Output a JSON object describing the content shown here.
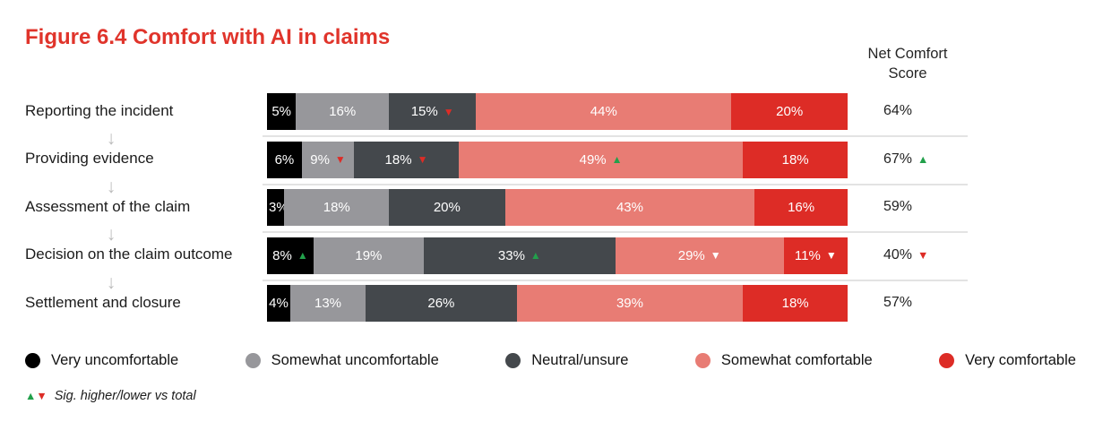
{
  "title": "Figure 6.4 Comfort with AI in claims",
  "net_score_header": {
    "line1": "Net Comfort",
    "line2": "Score"
  },
  "colors": {
    "title": "#e0342b",
    "very_uncomfortable": "#000000",
    "somewhat_uncomfortable": "#97979b",
    "neutral_unsure": "#44484c",
    "somewhat_comfortable": "#e87c74",
    "very_comfortable": "#dd2c26",
    "sig_up_green": "#22a04b",
    "sig_down_red": "#dd2c26",
    "marker_white": "#ffffff",
    "divider": "#e3e3e3",
    "flow_arrow": "#bcbcbc"
  },
  "legend": {
    "items": [
      {
        "label": "Very uncomfortable",
        "color_key": "very_uncomfortable"
      },
      {
        "label": "Somewhat uncomfortable",
        "color_key": "somewhat_uncomfortable"
      },
      {
        "label": "Neutral/unsure",
        "color_key": "neutral_unsure"
      },
      {
        "label": "Somewhat comfortable",
        "color_key": "somewhat_comfortable"
      },
      {
        "label": "Very comfortable",
        "color_key": "very_comfortable"
      }
    ]
  },
  "footnote": {
    "up": "▲",
    "down": "▼",
    "text": "Sig. higher/lower vs total"
  },
  "chart_data": {
    "type": "bar",
    "subtype": "horizontal-stacked-100",
    "unit": "%",
    "title": "Figure 6.4 Comfort with AI in claims",
    "net_column_label": "Net Comfort Score",
    "sig_note": "Sig. higher/lower vs total",
    "categories": [
      "Reporting the incident",
      "Providing evidence",
      "Assessment of the claim",
      "Decision on the claim outcome",
      "Settlement and closure"
    ],
    "series": [
      {
        "name": "Very uncomfortable",
        "color_key": "very_uncomfortable"
      },
      {
        "name": "Somewhat uncomfortable",
        "color_key": "somewhat_uncomfortable"
      },
      {
        "name": "Neutral/unsure",
        "color_key": "neutral_unsure"
      },
      {
        "name": "Somewhat comfortable",
        "color_key": "somewhat_comfortable"
      },
      {
        "name": "Very comfortable",
        "color_key": "very_comfortable"
      }
    ],
    "rows": [
      {
        "label": "Reporting the incident",
        "segments": [
          {
            "value": 5,
            "marker": null
          },
          {
            "value": 16,
            "marker": null
          },
          {
            "value": 15,
            "marker": "down_red"
          },
          {
            "value": 44,
            "marker": null
          },
          {
            "value": 20,
            "marker": null
          }
        ],
        "net": {
          "label": "64%",
          "marker": null
        }
      },
      {
        "label": "Providing evidence",
        "segments": [
          {
            "value": 6,
            "marker": null
          },
          {
            "value": 9,
            "marker": "down_red"
          },
          {
            "value": 18,
            "marker": "down_red"
          },
          {
            "value": 49,
            "marker": "up_green"
          },
          {
            "value": 18,
            "marker": null
          }
        ],
        "net": {
          "label": "67%",
          "marker": "up_green"
        }
      },
      {
        "label": "Assessment of the claim",
        "segments": [
          {
            "value": 3,
            "marker": "down_red"
          },
          {
            "value": 18,
            "marker": null
          },
          {
            "value": 20,
            "marker": null
          },
          {
            "value": 43,
            "marker": null
          },
          {
            "value": 16,
            "marker": null
          }
        ],
        "net": {
          "label": "59%",
          "marker": null
        }
      },
      {
        "label": "Decision on the claim outcome",
        "segments": [
          {
            "value": 8,
            "marker": "up_green"
          },
          {
            "value": 19,
            "marker": null
          },
          {
            "value": 33,
            "marker": "up_green"
          },
          {
            "value": 29,
            "marker": "down_white"
          },
          {
            "value": 11,
            "marker": "down_white"
          }
        ],
        "net": {
          "label": "40%",
          "marker": "down_red"
        }
      },
      {
        "label": "Settlement and closure",
        "segments": [
          {
            "value": 4,
            "marker": null
          },
          {
            "value": 13,
            "marker": null
          },
          {
            "value": 26,
            "marker": null
          },
          {
            "value": 39,
            "marker": null
          },
          {
            "value": 18,
            "marker": null
          }
        ],
        "net": {
          "label": "57%",
          "marker": null
        }
      }
    ]
  }
}
